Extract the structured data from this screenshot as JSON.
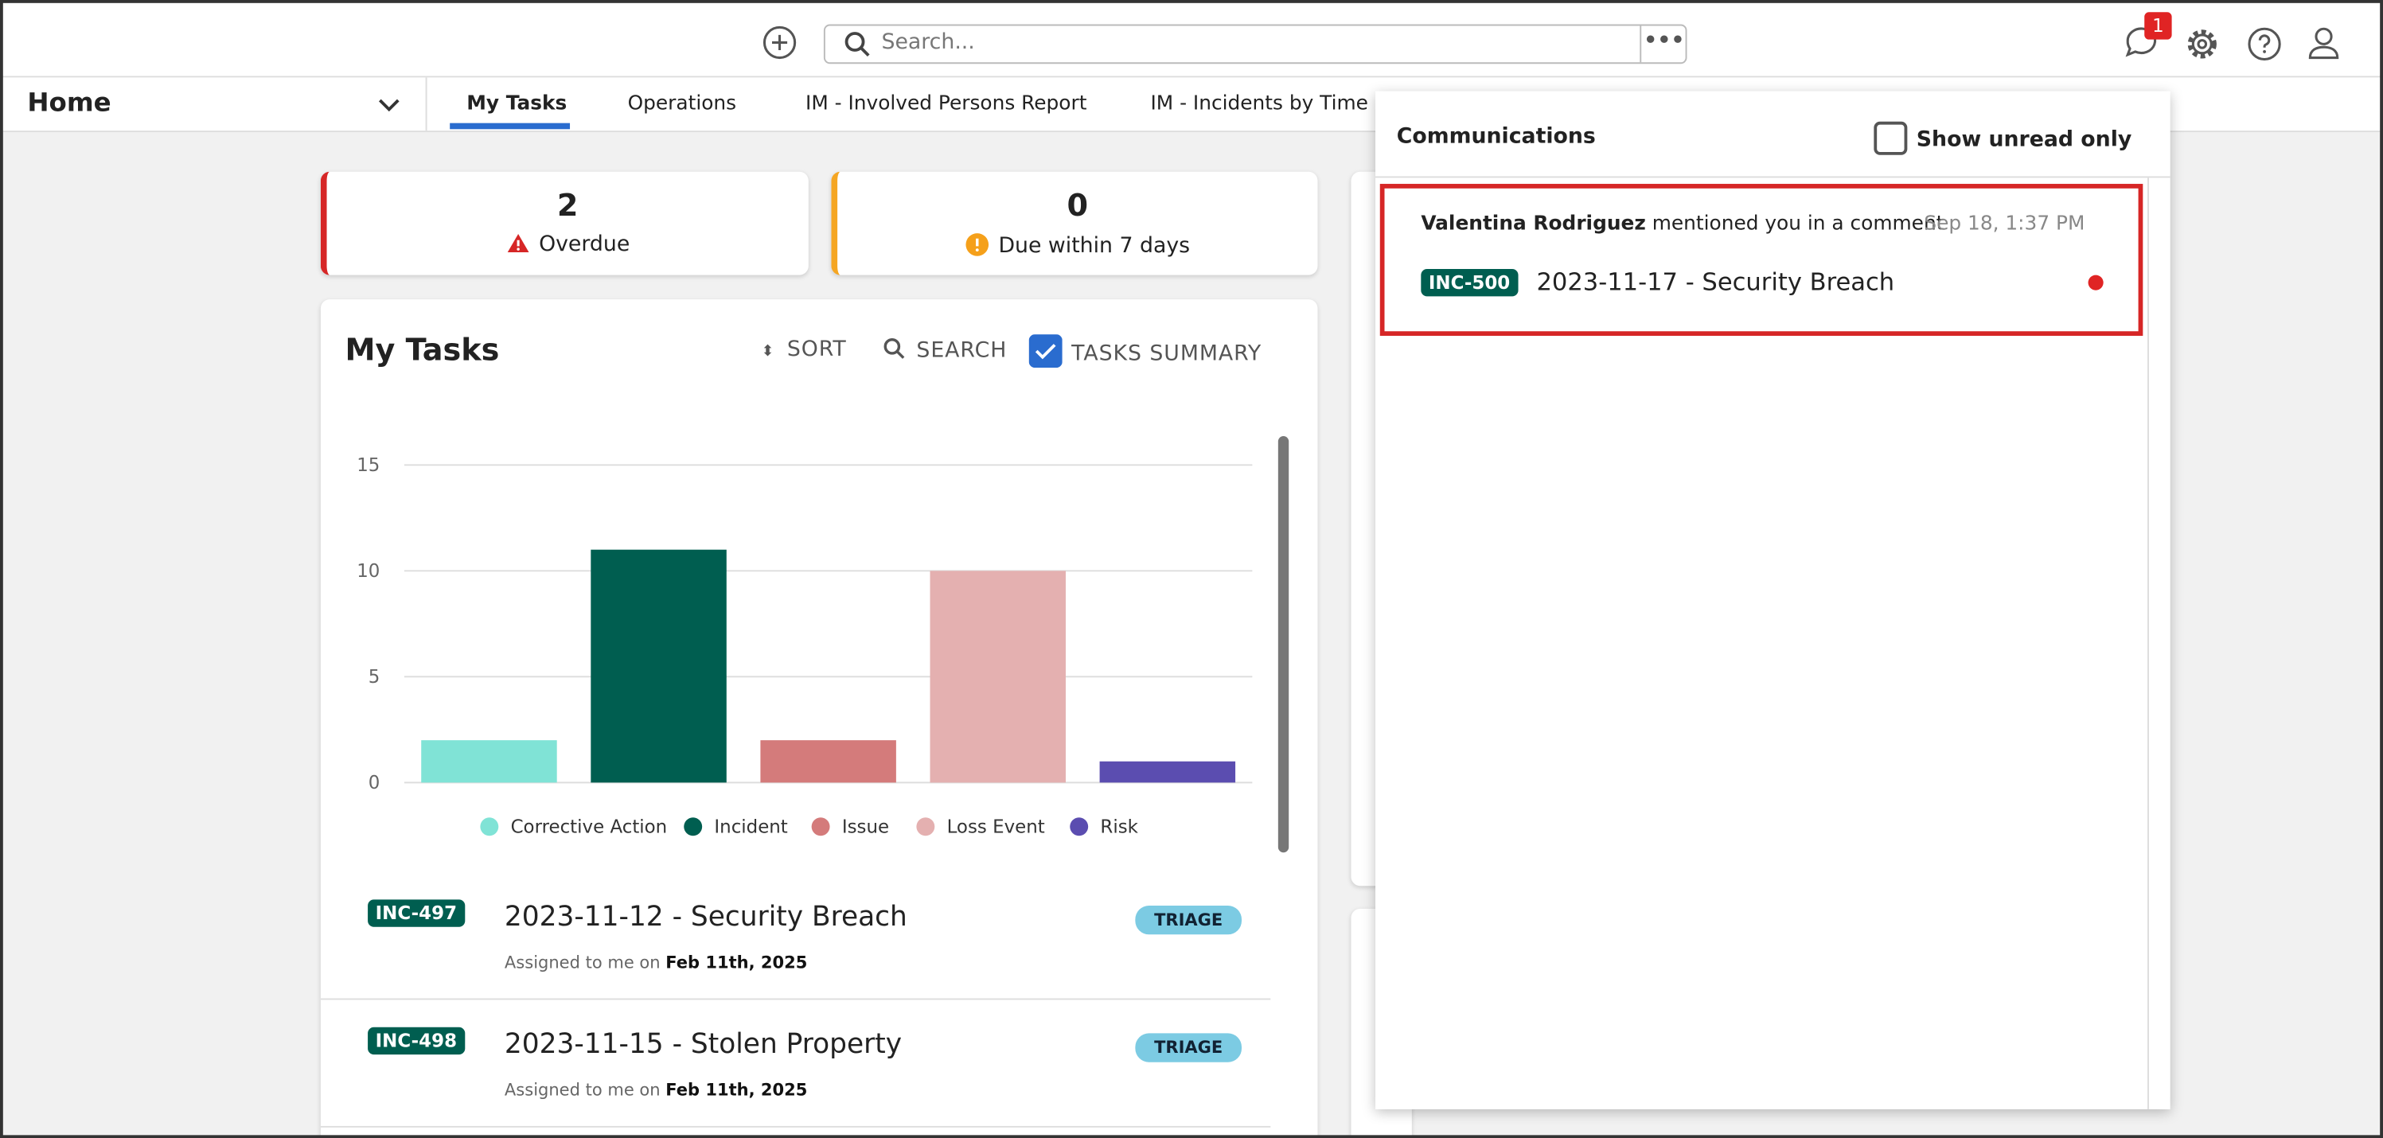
{
  "header": {
    "search_placeholder": "Search...",
    "notification_count": 1
  },
  "nav": {
    "workspace": "Home",
    "tabs": [
      "My Tasks",
      "Operations",
      "IM - Involved Persons Report",
      "IM - Incidents by Time P"
    ]
  },
  "summary": [
    {
      "count": 2,
      "label": "Overdue"
    },
    {
      "count": 0,
      "label": "Due within 7 days"
    }
  ],
  "tasks_panel": {
    "title": "My Tasks",
    "actions": [
      "SORT",
      "SEARCH",
      "TASKS SUMMARY"
    ],
    "tasks": [
      {
        "id": "INC-497",
        "title": "2023-11-12 - Security Breach",
        "status": "TRIAGE",
        "assigned_prefix": "Assigned to me on",
        "assigned_date": "Feb 11th, 2025"
      },
      {
        "id": "INC-498",
        "title": "2023-11-15 - Stolen Property",
        "status": "TRIAGE",
        "assigned_prefix": "Assigned to me on",
        "assigned_date": "Feb 11th, 2025"
      }
    ]
  },
  "chart_data": {
    "type": "bar",
    "categories": [
      "Corrective Action",
      "Incident",
      "Issue",
      "Loss Event",
      "Risk"
    ],
    "values": [
      2,
      11,
      2,
      10,
      1
    ],
    "colors": [
      "#80e3d6",
      "#005e50",
      "#d47b7b",
      "#e4b0b0",
      "#5b4db0"
    ],
    "ylim": [
      0,
      15
    ],
    "yticks": [
      0,
      5,
      10,
      15
    ],
    "grid": true,
    "legend": "bottom"
  },
  "communications": {
    "title": "Communications",
    "filter_label": "Show unread only",
    "items": [
      {
        "author": "Valentina Rodriguez",
        "action": "mentioned you in a comment",
        "date": "Sep 18, 1:37 PM",
        "id": "INC-500",
        "title": "2023-11-17 - Security Breach"
      }
    ]
  }
}
